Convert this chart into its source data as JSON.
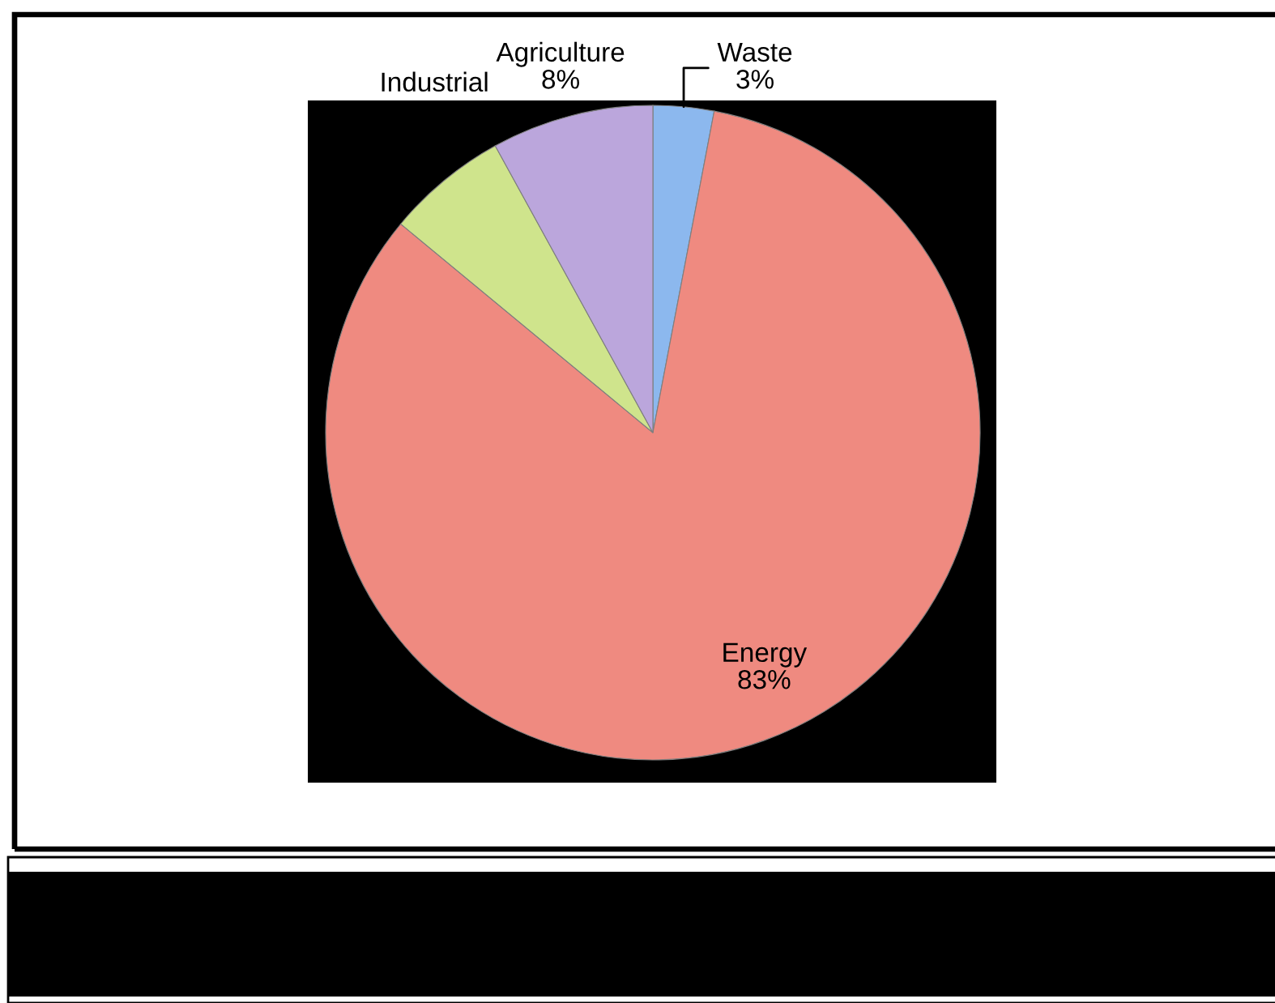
{
  "chart_data": {
    "type": "pie",
    "categories": [
      "Waste",
      "Energy",
      "Industrial",
      "Agriculture"
    ],
    "values": [
      3,
      83,
      6,
      8
    ],
    "colors": [
      "#8cb8ee",
      "#ef8a80",
      "#cfe48c",
      "#bba6dc"
    ],
    "value_labels": [
      "3%",
      "83%",
      null,
      "8%"
    ]
  }
}
